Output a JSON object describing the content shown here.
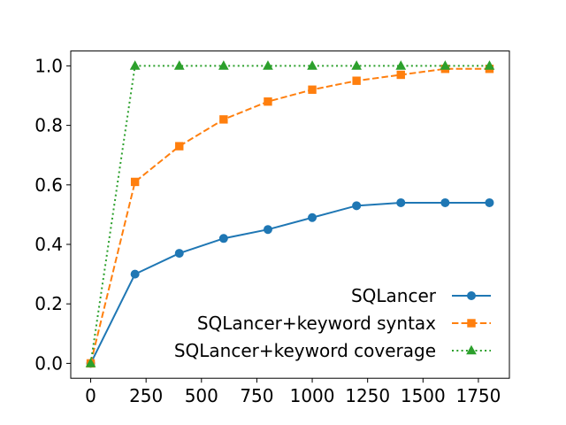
{
  "chart_data": {
    "type": "line",
    "title": "",
    "xlabel": "",
    "ylabel": "",
    "xlim": [
      -90,
      1890
    ],
    "ylim": [
      -0.05,
      1.05
    ],
    "xticks": [
      0,
      250,
      500,
      750,
      1000,
      1250,
      1500,
      1750
    ],
    "yticks": [
      0.0,
      0.2,
      0.4,
      0.6,
      0.8,
      1.0
    ],
    "xtick_labels": [
      "0",
      "250",
      "500",
      "750",
      "1000",
      "1250",
      "1500",
      "1750"
    ],
    "ytick_labels": [
      "0.0",
      "0.2",
      "0.4",
      "0.6",
      "0.8",
      "1.0"
    ],
    "grid": false,
    "legend_position": "lower-right",
    "x": [
      0,
      200,
      400,
      600,
      800,
      1000,
      1200,
      1400,
      1600,
      1800
    ],
    "series": [
      {
        "name": "SQLancer",
        "values": [
          0.0,
          0.3,
          0.37,
          0.42,
          0.45,
          0.49,
          0.53,
          0.54,
          0.54,
          0.54
        ],
        "color": "#1f77b4",
        "line_style": "solid",
        "marker": "circle"
      },
      {
        "name": "SQLancer+keyword syntax",
        "values": [
          0.0,
          0.61,
          0.73,
          0.82,
          0.88,
          0.92,
          0.95,
          0.97,
          0.99,
          0.99
        ],
        "color": "#ff7f0e",
        "line_style": "dashed",
        "marker": "square"
      },
      {
        "name": "SQLancer+keyword coverage",
        "values": [
          0.0,
          1.0,
          1.0,
          1.0,
          1.0,
          1.0,
          1.0,
          1.0,
          1.0,
          1.0
        ],
        "color": "#2ca02c",
        "line_style": "dotted",
        "marker": "triangle"
      }
    ]
  }
}
